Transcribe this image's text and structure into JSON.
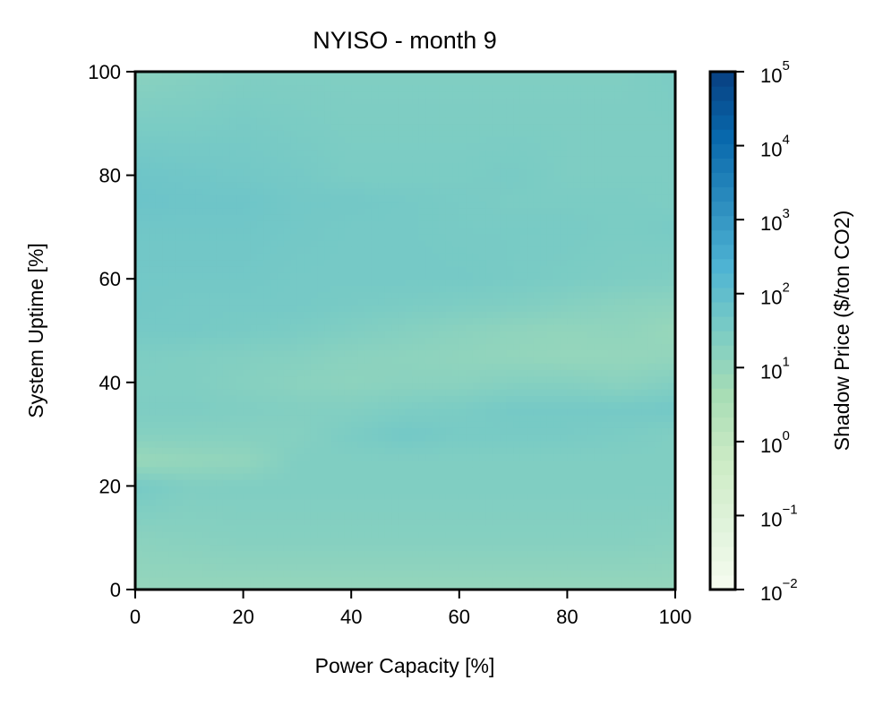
{
  "chart_data": {
    "type": "heatmap",
    "title": "NYISO - month 9",
    "xlabel": "Power Capacity [%]",
    "ylabel": "System Uptime [%]",
    "xlim": [
      0,
      100
    ],
    "ylim": [
      0,
      100
    ],
    "x_ticks": [
      "0",
      "20",
      "40",
      "60",
      "80",
      "100"
    ],
    "y_ticks": [
      "0",
      "20",
      "40",
      "60",
      "80",
      "100"
    ],
    "x": [
      0,
      10,
      20,
      30,
      40,
      50,
      60,
      70,
      80,
      90,
      100
    ],
    "y": [
      0,
      10,
      20,
      25,
      30,
      35,
      40,
      45,
      50,
      55,
      60,
      70,
      75,
      80,
      90,
      100
    ],
    "z_log10": [
      [
        1.0,
        1.0,
        1.0,
        1.0,
        1.0,
        1.0,
        1.0,
        1.0,
        1.0,
        1.0,
        1.0
      ],
      [
        1.2,
        1.25,
        1.3,
        1.3,
        1.3,
        1.3,
        1.3,
        1.3,
        1.3,
        1.3,
        1.25
      ],
      [
        1.6,
        1.4,
        1.4,
        1.4,
        1.4,
        1.4,
        1.4,
        1.4,
        1.4,
        1.4,
        1.4
      ],
      [
        0.9,
        1.0,
        1.05,
        1.4,
        1.4,
        1.4,
        1.4,
        1.4,
        1.4,
        1.4,
        1.4
      ],
      [
        1.3,
        1.3,
        1.3,
        1.3,
        1.5,
        1.65,
        1.55,
        1.55,
        1.55,
        1.5,
        1.4
      ],
      [
        1.45,
        1.45,
        1.4,
        1.35,
        1.35,
        1.45,
        1.5,
        1.6,
        1.6,
        1.6,
        1.65
      ],
      [
        1.4,
        1.4,
        1.3,
        1.2,
        1.15,
        1.2,
        1.2,
        1.3,
        1.3,
        1.2,
        1.35
      ],
      [
        1.45,
        1.4,
        1.35,
        1.3,
        1.2,
        1.15,
        1.1,
        1.05,
        1.0,
        1.0,
        1.05
      ],
      [
        1.6,
        1.6,
        1.55,
        1.5,
        1.4,
        1.3,
        1.2,
        1.1,
        1.05,
        1.1,
        0.95
      ],
      [
        1.65,
        1.6,
        1.6,
        1.6,
        1.55,
        1.5,
        1.45,
        1.4,
        1.3,
        1.2,
        1.15
      ],
      [
        1.65,
        1.65,
        1.65,
        1.6,
        1.6,
        1.6,
        1.6,
        1.55,
        1.5,
        1.45,
        1.4
      ],
      [
        1.7,
        1.7,
        1.7,
        1.65,
        1.6,
        1.6,
        1.55,
        1.55,
        1.55,
        1.5,
        1.55
      ],
      [
        1.8,
        1.75,
        1.75,
        1.65,
        1.65,
        1.6,
        1.55,
        1.5,
        1.5,
        1.5,
        1.45
      ],
      [
        1.75,
        1.7,
        1.65,
        1.6,
        1.5,
        1.5,
        1.5,
        1.55,
        1.45,
        1.45,
        1.45
      ],
      [
        1.5,
        1.5,
        1.55,
        1.5,
        1.45,
        1.45,
        1.45,
        1.45,
        1.45,
        1.45,
        1.45
      ],
      [
        1.2,
        1.3,
        1.4,
        1.4,
        1.4,
        1.4,
        1.4,
        1.4,
        1.4,
        1.4,
        1.5
      ]
    ],
    "colorbar": {
      "label": "Shadow Price ($/ton CO2)",
      "scale": "log",
      "lim": [
        0.01,
        100000
      ],
      "ticks": [
        {
          "base": "10",
          "exp": "−2"
        },
        {
          "base": "10",
          "exp": "−1"
        },
        {
          "base": "10",
          "exp": "0"
        },
        {
          "base": "10",
          "exp": "1"
        },
        {
          "base": "10",
          "exp": "2"
        },
        {
          "base": "10",
          "exp": "3"
        },
        {
          "base": "10",
          "exp": "4"
        },
        {
          "base": "10",
          "exp": "5"
        }
      ],
      "colormap": "GnBu",
      "colors": [
        "#f7fcf0",
        "#e0f3db",
        "#ccebc5",
        "#a8ddb5",
        "#7bccc4",
        "#4eb3d3",
        "#2b8cbe",
        "#0868ac",
        "#084081"
      ]
    }
  }
}
